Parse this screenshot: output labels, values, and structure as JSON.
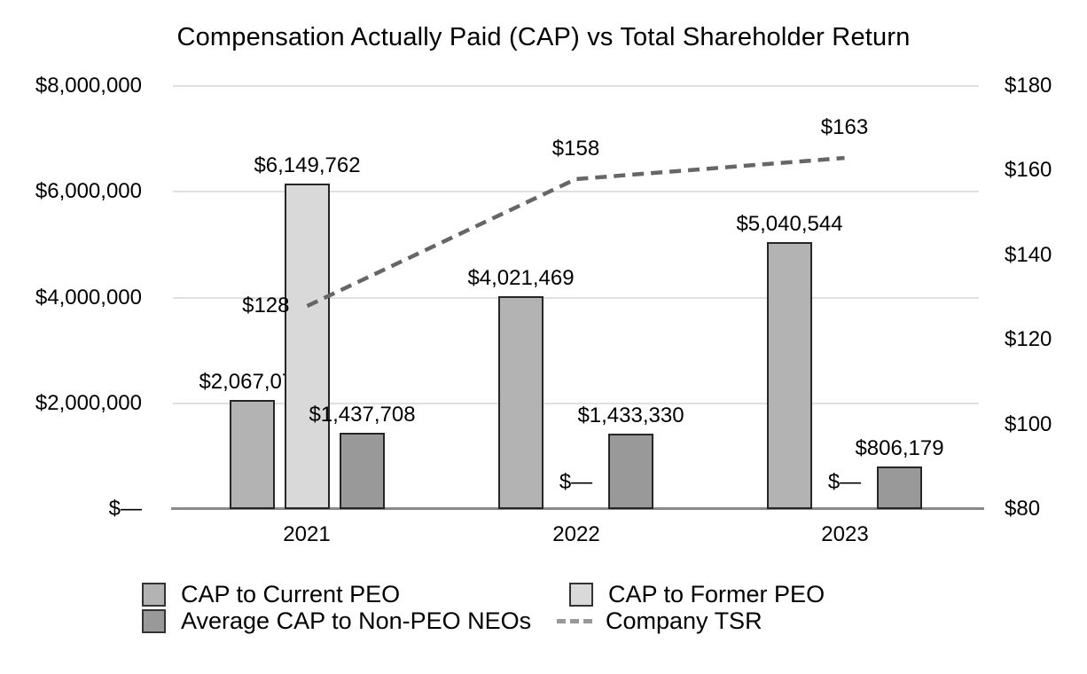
{
  "chart_data": {
    "type": "bar+line",
    "title": "Compensation Actually Paid (CAP) vs Total Shareholder Return",
    "categories": [
      "2021",
      "2022",
      "2023"
    ],
    "bar_series": [
      {
        "name": "CAP to Current PEO",
        "color": "#b3b3b3",
        "values": [
          2067075,
          4021469,
          5040544
        ],
        "labels": [
          "$2,067,075",
          "$4,021,469",
          "$5,040,544"
        ]
      },
      {
        "name": "CAP to Former PEO",
        "color": "#d9d9d9",
        "values": [
          6149762,
          0,
          0
        ],
        "labels": [
          "$6,149,762",
          "$—",
          "$—"
        ]
      },
      {
        "name": "Average CAP to Non-PEO NEOs",
        "color": "#999999",
        "values": [
          1437708,
          1433330,
          806179
        ],
        "labels": [
          "$1,437,708",
          "$1,433,330",
          "$806,179"
        ]
      }
    ],
    "line_series": {
      "name": "Company TSR",
      "color": "#666666",
      "values": [
        128,
        158,
        163
      ],
      "labels": [
        "$128",
        "$158",
        "$163"
      ],
      "label_positions": [
        "left",
        "above",
        "above"
      ]
    },
    "left_axis": {
      "min": 0,
      "max": 8000000,
      "ticks": [
        "$8,000,000",
        "$6,000,000",
        "$4,000,000",
        "$2,000,000",
        "$—"
      ]
    },
    "right_axis": {
      "min": 80,
      "max": 180,
      "ticks": [
        "$180",
        "$160",
        "$140",
        "$120",
        "$100",
        "$80"
      ]
    },
    "grid": "horizontal",
    "legend_position": "bottom",
    "legend": [
      {
        "label": "CAP to Current PEO",
        "marker": "square",
        "color": "#b3b3b3"
      },
      {
        "label": "CAP to Former PEO",
        "marker": "square",
        "color": "#d9d9d9"
      },
      {
        "label": "Average CAP to Non-PEO NEOs",
        "marker": "square",
        "color": "#999999"
      },
      {
        "label": "Company TSR",
        "marker": "dashed-line",
        "color": "#999999"
      }
    ]
  }
}
